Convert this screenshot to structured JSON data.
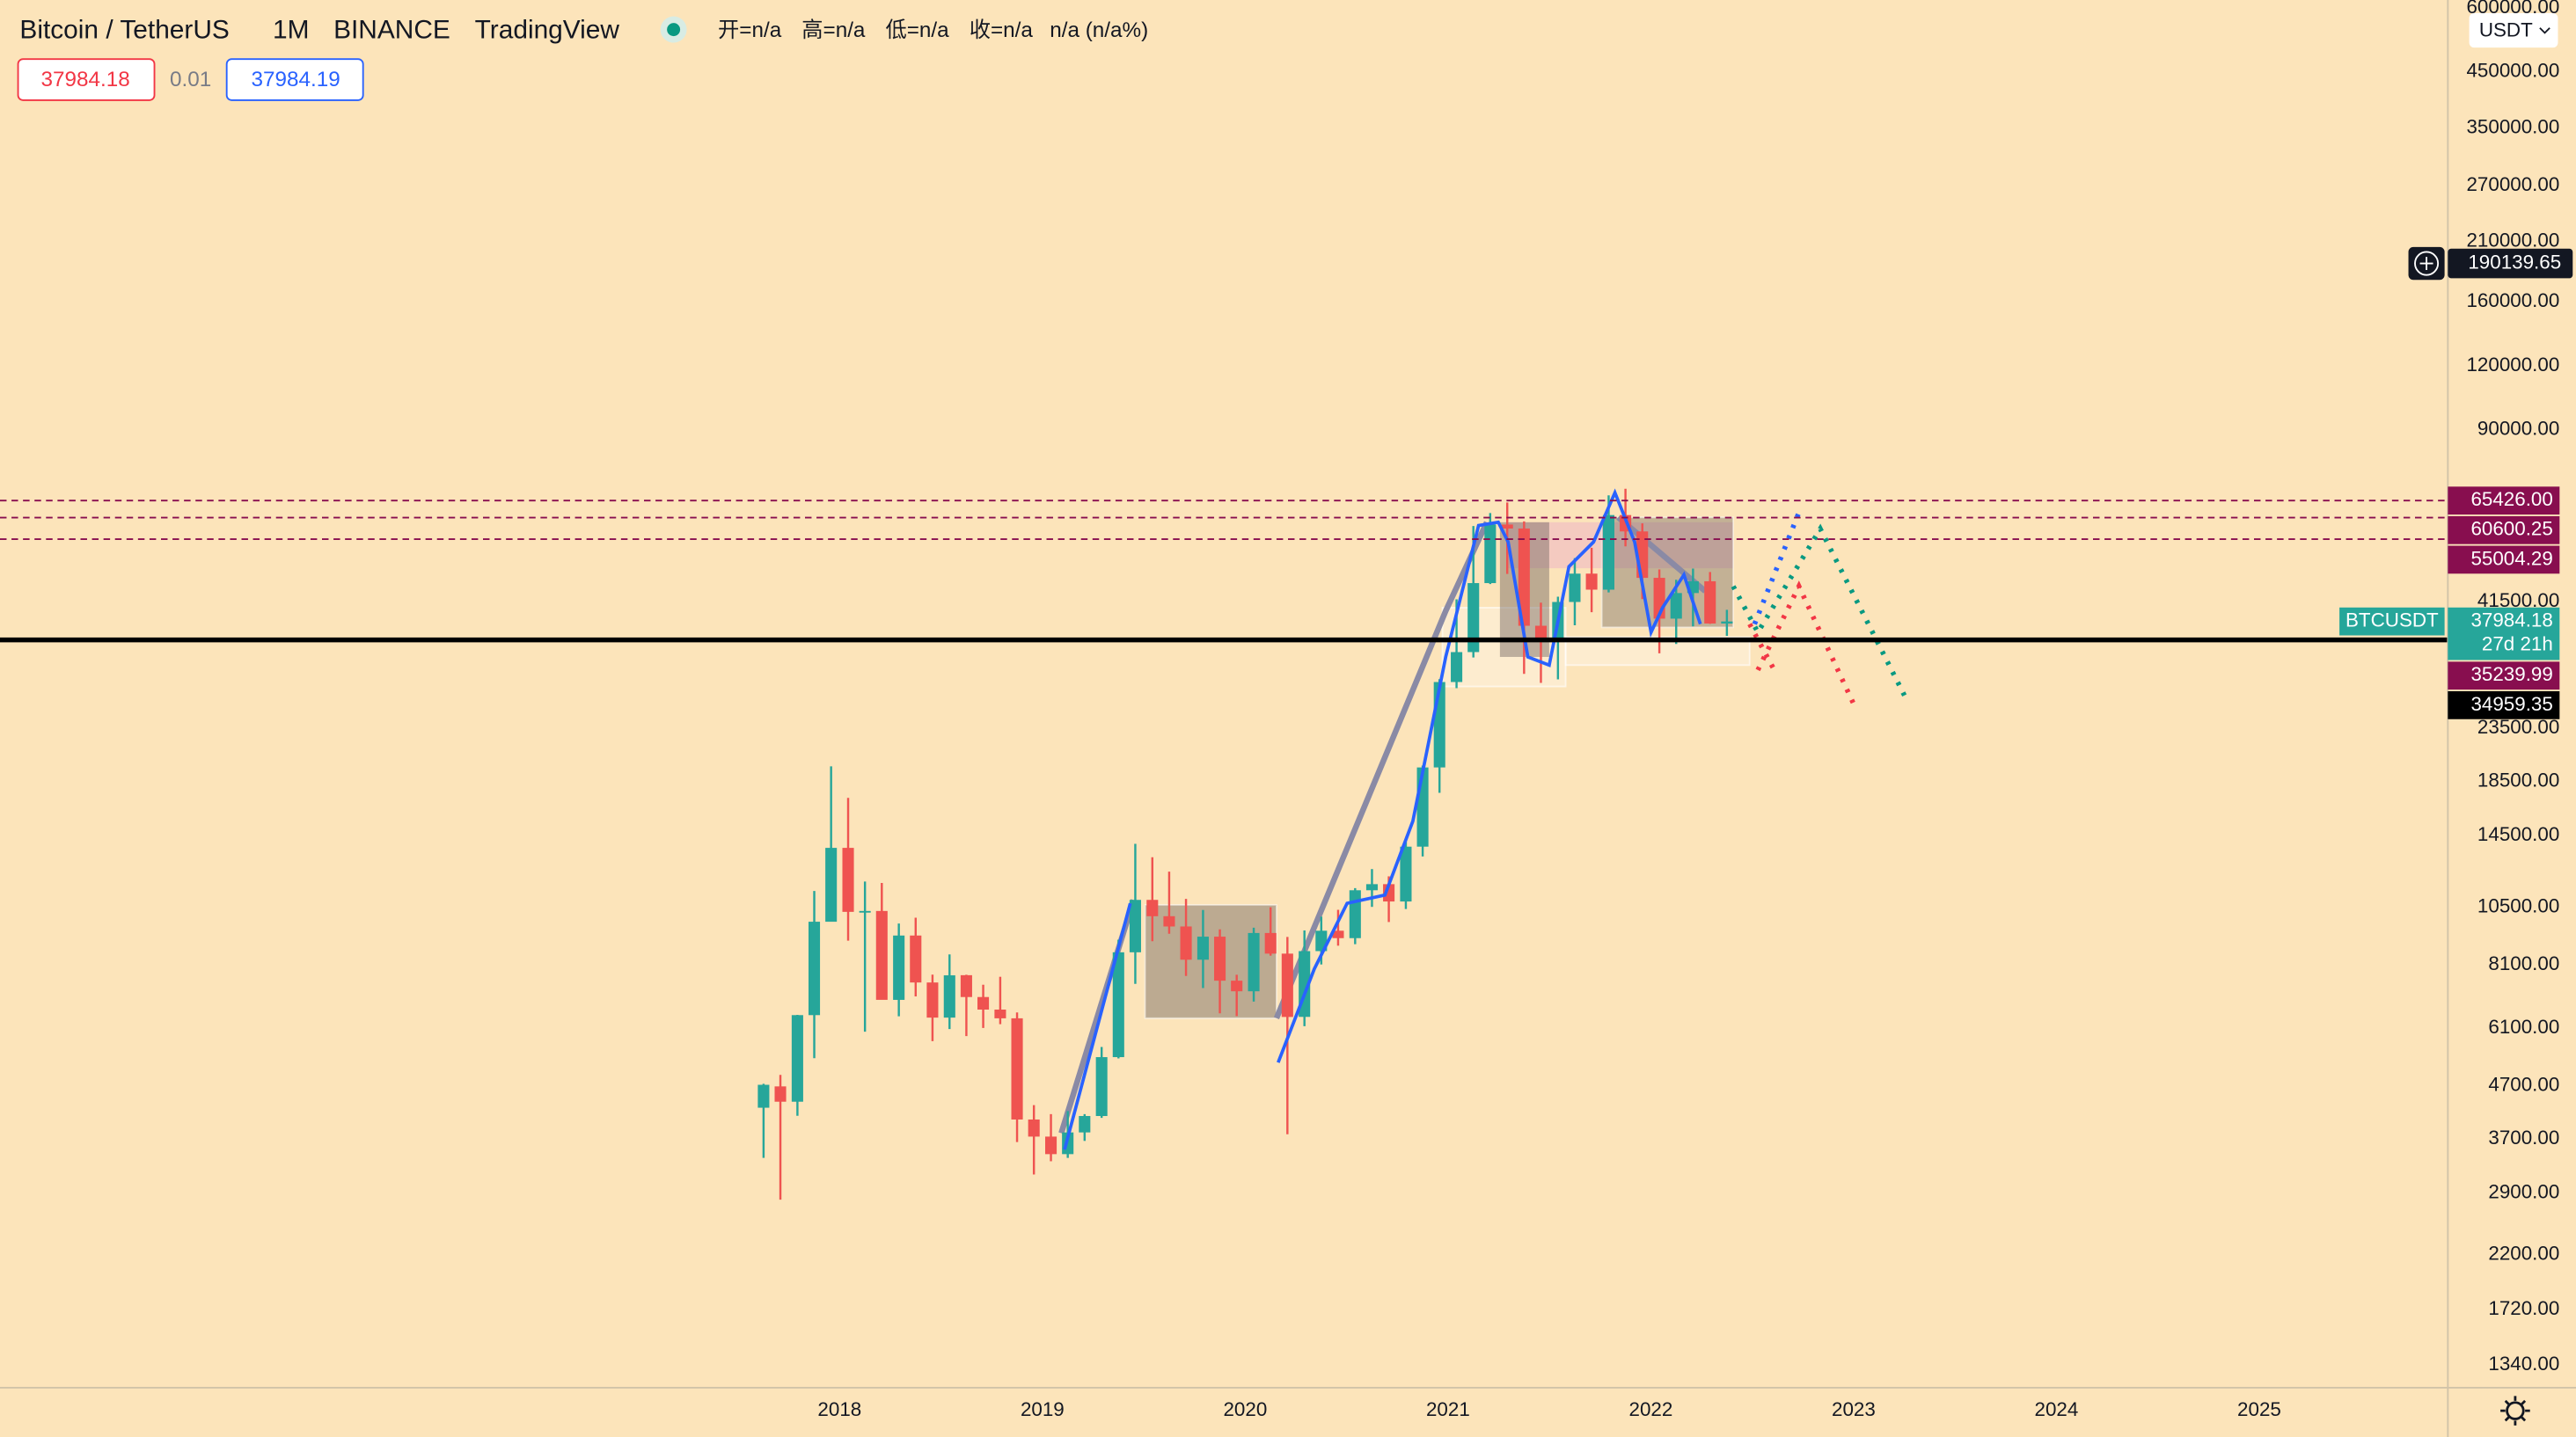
{
  "header": {
    "symbol": "Bitcoin / TetherUS",
    "interval": "1M",
    "exchange": "BINANCE",
    "source": "TradingView",
    "ohlc": [
      "开=n/a",
      "高=n/a",
      "低=n/a",
      "收=n/a"
    ],
    "change": "n/a (n/a%)",
    "bid": "37984.18",
    "spread": "0.01",
    "ask": "37984.19",
    "currency": "USDT"
  },
  "chart_data": {
    "type": "candlestick",
    "log_scale": true,
    "grid": true,
    "up_color": "#26a69a",
    "down_color": "#ef5350",
    "x": [
      2017.625,
      2017.708,
      2017.792,
      2017.875,
      2017.958,
      2018.042,
      2018.125,
      2018.208,
      2018.292,
      2018.375,
      2018.458,
      2018.542,
      2018.625,
      2018.708,
      2018.792,
      2018.875,
      2018.958,
      2019.042,
      2019.125,
      2019.208,
      2019.292,
      2019.375,
      2019.458,
      2019.542,
      2019.625,
      2019.708,
      2019.792,
      2019.875,
      2019.958,
      2020.042,
      2020.125,
      2020.208,
      2020.292,
      2020.375,
      2020.458,
      2020.542,
      2020.625,
      2020.708,
      2020.792,
      2020.875,
      2020.958,
      2021.042,
      2021.125,
      2021.208,
      2021.292,
      2021.375,
      2021.458,
      2021.542,
      2021.625,
      2021.708,
      2021.792,
      2021.875,
      2021.958,
      2022.042,
      2022.125,
      2022.208,
      2022.292,
      2022.375
    ],
    "open": [
      4261,
      4690,
      4378,
      6463,
      9838,
      13716,
      10285,
      10326,
      6922,
      9246,
      7485,
      6391,
      7735,
      7011,
      6626,
      6371,
      4041,
      3742,
      3458,
      3813,
      4105,
      5350,
      8574,
      10854,
      10085,
      9630,
      8293,
      9199,
      7546,
      7195,
      9352,
      8523,
      6412,
      8620,
      9448,
      9138,
      11335,
      11650,
      10776,
      13791,
      19696,
      28923,
      33092,
      45135,
      58740,
      57697,
      37254,
      35045,
      41461,
      47100,
      43820,
      61300,
      56950,
      46217,
      38466,
      43160,
      45510,
      37630
    ],
    "high": [
      4745,
      4939,
      6470,
      11300,
      19798,
      17176,
      11786,
      11710,
      9759,
      10020,
      7754,
      8491,
      7750,
      7410,
      7680,
      6540,
      4312,
      4140,
      4198,
      4140,
      5600,
      9074,
      13970,
      13147,
      12325,
      10905,
      10370,
      9505,
      7750,
      9578,
      10500,
      9188,
      9460,
      10067,
      10380,
      11444,
      12468,
      12067,
      14100,
      19863,
      29300,
      41950,
      58352,
      61844,
      64854,
      59592,
      41330,
      42448,
      50500,
      52920,
      67000,
      69000,
      59053,
      47990,
      45821,
      48190,
      47444,
      40023
    ],
    "low": [
      3400,
      2817,
      4110,
      5325,
      10800,
      9035,
      6000,
      7650,
      6430,
      7032,
      5750,
      6070,
      5880,
      6100,
      6205,
      3652,
      3156,
      3349,
      3400,
      3670,
      4070,
      5320,
      7440,
      9011,
      9320,
      7710,
      7300,
      6515,
      6435,
      6871,
      8445,
      3782,
      6150,
      8117,
      8833,
      8893,
      10518,
      9825,
      10416,
      13195,
      17572,
      28130,
      32296,
      44950,
      47044,
      30000,
      28805,
      29278,
      37332,
      39600,
      43283,
      53256,
      42000,
      32917,
      34322,
      37155,
      37578,
      35600
    ],
    "close": [
      4724,
      4378,
      6463,
      9838,
      13716,
      10285,
      10326,
      6923,
      9246,
      7485,
      6391,
      7730,
      7011,
      6626,
      6371,
      4041,
      3742,
      3458,
      3813,
      4105,
      5350,
      8574,
      10854,
      10085,
      9630,
      8293,
      9199,
      7546,
      7195,
      9352,
      8523,
      6410,
      8620,
      9448,
      9138,
      11335,
      11650,
      10776,
      13791,
      19696,
      28923,
      33092,
      45135,
      58741,
      57694,
      37253,
      35045,
      41462,
      47100,
      43824,
      61300,
      56950,
      46216,
      38466,
      43160,
      45510,
      37630,
      37984
    ],
    "xlim": [
      2013.86,
      2025.93
    ],
    "xticks": [
      2018,
      2019,
      2020,
      2021,
      2022,
      2023,
      2024,
      2025
    ],
    "ylim": [
      1209,
      622000
    ],
    "yticks": [
      {
        "value": 600000,
        "label": "600000.00"
      },
      {
        "value": 450000,
        "label": "450000.00"
      },
      {
        "value": 350000,
        "label": "350000.00"
      },
      {
        "value": 270000,
        "label": "270000.00"
      },
      {
        "value": 210000,
        "label": "210000.00"
      },
      {
        "value": 160000,
        "label": "160000.00"
      },
      {
        "value": 120000,
        "label": "120000.00"
      },
      {
        "value": 90000,
        "label": "90000.00"
      },
      {
        "value": 41500,
        "label": "41500.00"
      },
      {
        "value": 23500,
        "label": "23500.00"
      },
      {
        "value": 18500,
        "label": "18500.00"
      },
      {
        "value": 14500,
        "label": "14500.00"
      },
      {
        "value": 10500,
        "label": "10500.00"
      },
      {
        "value": 8100,
        "label": "8100.00"
      },
      {
        "value": 6100,
        "label": "6100.00"
      },
      {
        "value": 4700,
        "label": "4700.00"
      },
      {
        "value": 3700,
        "label": "3700.00"
      },
      {
        "value": 2900,
        "label": "2900.00"
      },
      {
        "value": 2200,
        "label": "2200.00"
      },
      {
        "value": 1720,
        "label": "1720.00"
      },
      {
        "value": 1340,
        "label": "1340.00"
      }
    ],
    "price_lines": [
      {
        "value": 65426,
        "label": "65426.00",
        "color": "#880e4f",
        "style": "dashed"
      },
      {
        "value": 60600.25,
        "label": "60600.25",
        "color": "#880e4f",
        "style": "dashed"
      },
      {
        "value": 55004.29,
        "label": "55004.29",
        "color": "#880e4f",
        "style": "dashed"
      },
      {
        "value": 35239.99,
        "label": "35239.99",
        "color": "#880e4f",
        "style": "none"
      },
      {
        "value": 34959.35,
        "label": "34959.35",
        "color": "#000000",
        "style": "solid"
      }
    ],
    "last": {
      "name": "BTCUSDT",
      "value": 37984.18,
      "label": "37984.18",
      "countdown": "27d 21h",
      "color": "#26a69a"
    },
    "crosshair": {
      "value": 190139.65,
      "label": "190139.65"
    }
  }
}
